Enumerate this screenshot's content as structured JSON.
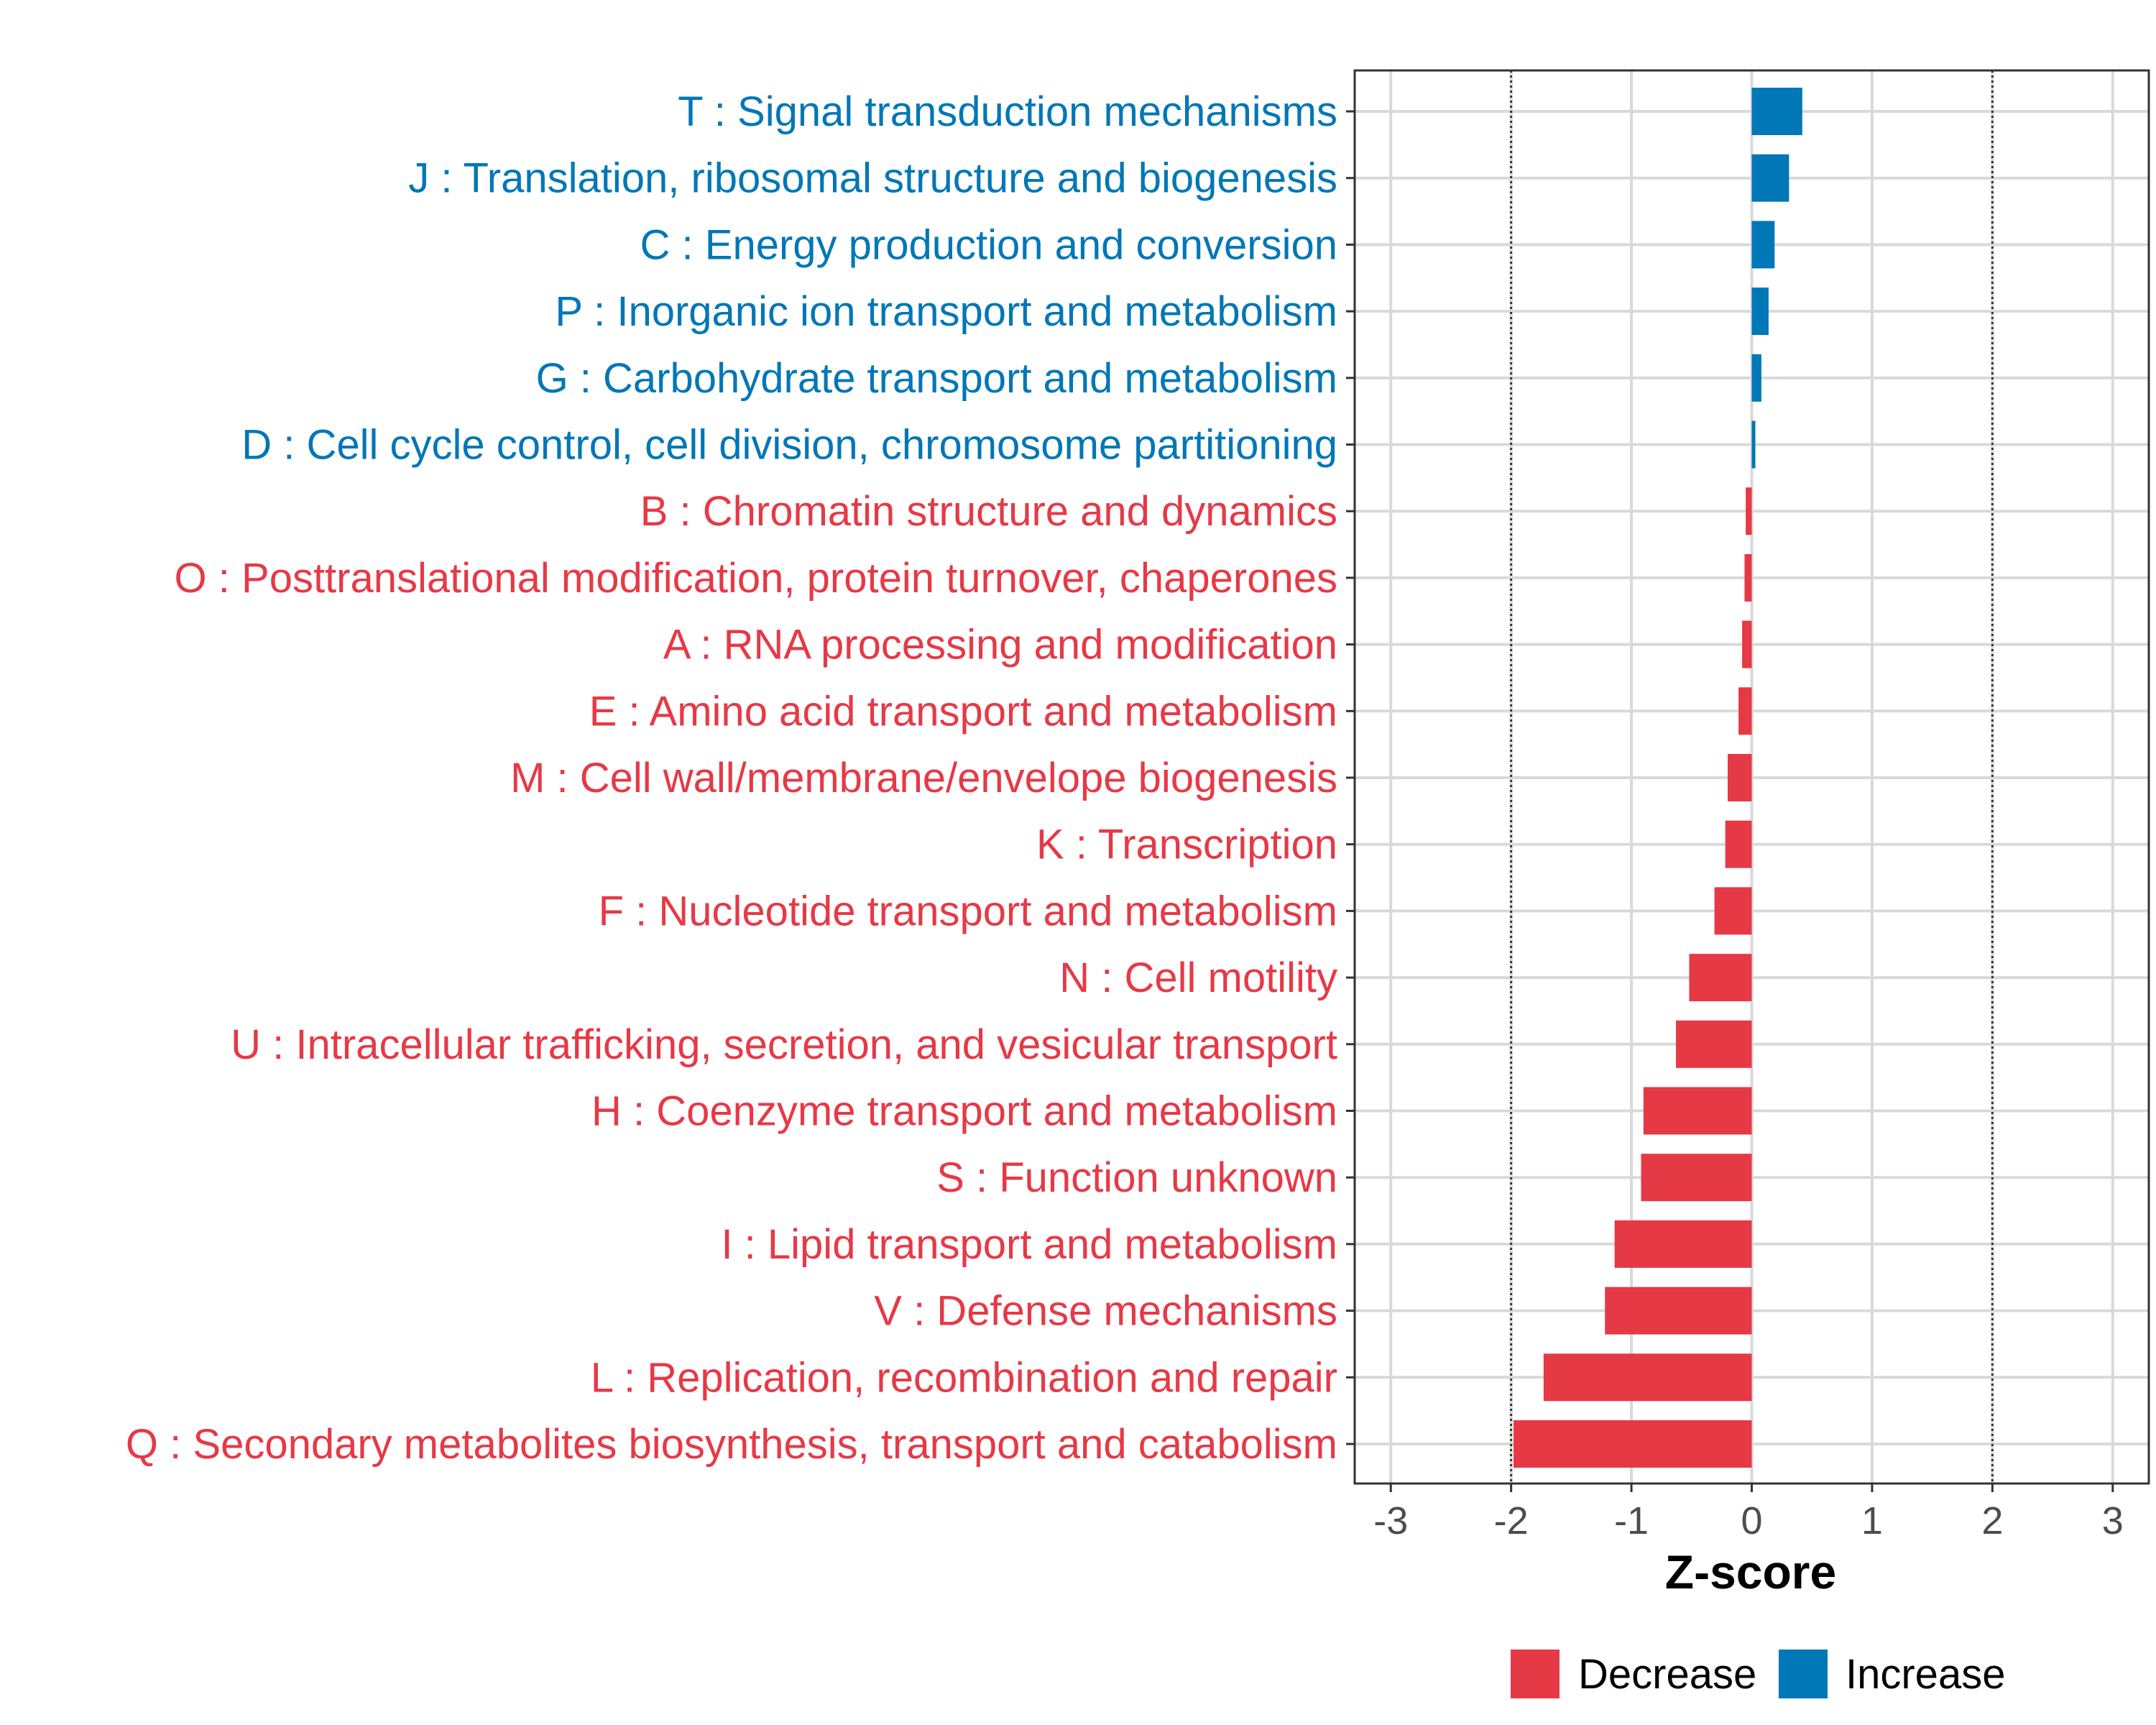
{
  "chart_data": {
    "type": "bar",
    "orientation": "horizontal",
    "xlabel": "Z-score",
    "xlim": [
      -3.3,
      3.3
    ],
    "xticks": [
      -3,
      -2,
      -1,
      0,
      1,
      2,
      3
    ],
    "xtick_labels": [
      "-3",
      "-2",
      "-1",
      "0",
      "1",
      "2",
      "3"
    ],
    "reference_lines": [
      -2,
      2
    ],
    "grid": true,
    "legend_position": "bottom",
    "legend": [
      {
        "label": "Decrease",
        "color": "#E63946"
      },
      {
        "label": "Increase",
        "color": "#0077B6"
      }
    ],
    "colors": {
      "Decrease": "#E63946",
      "Increase": "#0077B6"
    },
    "bars": [
      {
        "label": "T : Signal transduction mechanisms",
        "value": 0.42,
        "group": "Increase"
      },
      {
        "label": "J : Translation, ribosomal structure and biogenesis",
        "value": 0.31,
        "group": "Increase"
      },
      {
        "label": "C : Energy production and conversion",
        "value": 0.19,
        "group": "Increase"
      },
      {
        "label": "P : Inorganic ion transport and metabolism",
        "value": 0.14,
        "group": "Increase"
      },
      {
        "label": "G : Carbohydrate transport and metabolism",
        "value": 0.08,
        "group": "Increase"
      },
      {
        "label": "D : Cell cycle control, cell division, chromosome partitioning",
        "value": 0.03,
        "group": "Increase"
      },
      {
        "label": "B : Chromatin structure and dynamics",
        "value": -0.05,
        "group": "Decrease"
      },
      {
        "label": "O : Posttranslational modification, protein turnover, chaperones",
        "value": -0.06,
        "group": "Decrease"
      },
      {
        "label": "A : RNA processing and modification",
        "value": -0.08,
        "group": "Decrease"
      },
      {
        "label": "E : Amino acid transport and metabolism",
        "value": -0.11,
        "group": "Decrease"
      },
      {
        "label": "M : Cell wall/membrane/envelope biogenesis",
        "value": -0.2,
        "group": "Decrease"
      },
      {
        "label": "K : Transcription",
        "value": -0.22,
        "group": "Decrease"
      },
      {
        "label": "F : Nucleotide transport and metabolism",
        "value": -0.31,
        "group": "Decrease"
      },
      {
        "label": "N : Cell motility",
        "value": -0.52,
        "group": "Decrease"
      },
      {
        "label": "U : Intracellular trafficking, secretion, and vesicular transport",
        "value": -0.63,
        "group": "Decrease"
      },
      {
        "label": "H : Coenzyme transport and metabolism",
        "value": -0.9,
        "group": "Decrease"
      },
      {
        "label": "S : Function unknown",
        "value": -0.92,
        "group": "Decrease"
      },
      {
        "label": "I : Lipid transport and metabolism",
        "value": -1.14,
        "group": "Decrease"
      },
      {
        "label": "V : Defense mechanisms",
        "value": -1.22,
        "group": "Decrease"
      },
      {
        "label": "L : Replication, recombination and repair",
        "value": -1.73,
        "group": "Decrease"
      },
      {
        "label": "Q : Secondary metabolites biosynthesis, transport and catabolism",
        "value": -1.98,
        "group": "Decrease"
      }
    ]
  }
}
